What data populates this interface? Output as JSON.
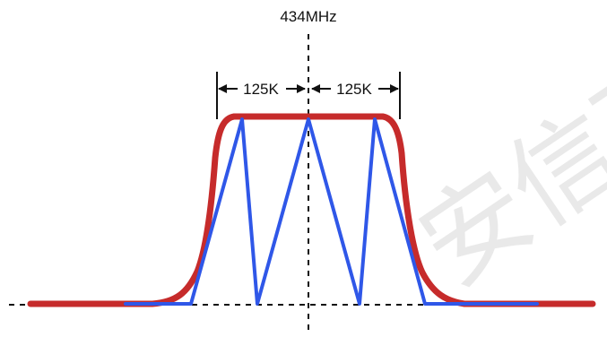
{
  "diagram": {
    "center_frequency_label": "434MHz",
    "left_span_label": "125K",
    "right_span_label": "125K",
    "watermark_text": "安信可"
  },
  "colors": {
    "envelope": "#c62b2b",
    "chirp": "#2f57e8",
    "axis": "#111111",
    "watermark": "#d8d8d8"
  }
}
